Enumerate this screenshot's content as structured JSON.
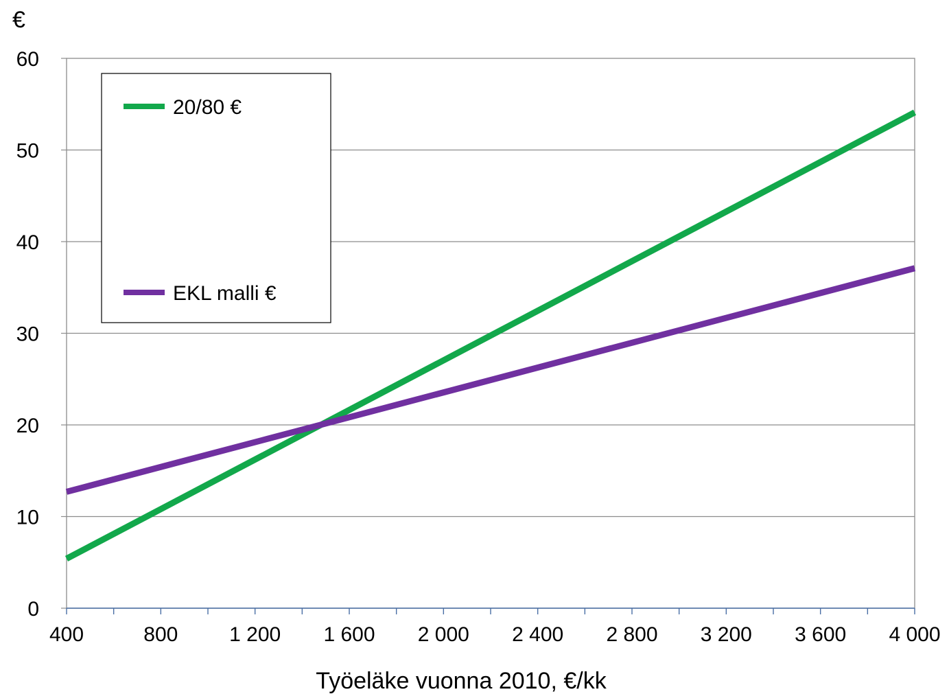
{
  "chart_data": {
    "type": "line",
    "unit_label": "€",
    "xlabel": "Työeläke vuonna 2010, €/kk",
    "ylabel": "",
    "xlim": [
      400,
      4000
    ],
    "ylim": [
      0,
      60
    ],
    "x_ticks": [
      400,
      800,
      1200,
      1600,
      2000,
      2400,
      2800,
      3200,
      3600,
      4000
    ],
    "x_tick_labels": [
      "400",
      "800",
      "1 200",
      "1 600",
      "2 000",
      "2 400",
      "2 800",
      "3 200",
      "3 600",
      "4 000"
    ],
    "x_minor_ticks": [
      600,
      1000,
      1400,
      1800,
      2200,
      2600,
      3000,
      3400,
      3800
    ],
    "y_ticks": [
      0,
      10,
      20,
      30,
      40,
      50,
      60
    ],
    "y_tick_labels": [
      "0",
      "10",
      "20",
      "30",
      "40",
      "50",
      "60"
    ],
    "grid": "horizontal",
    "legend_position": "top-left",
    "series": [
      {
        "name": "20/80 €",
        "color": "#12a84b",
        "x": [
          400,
          4000
        ],
        "y": [
          5.4,
          54.1
        ]
      },
      {
        "name": "EKL malli €",
        "color": "#7030a0",
        "x": [
          400,
          4000
        ],
        "y": [
          12.7,
          37.1
        ]
      }
    ]
  }
}
